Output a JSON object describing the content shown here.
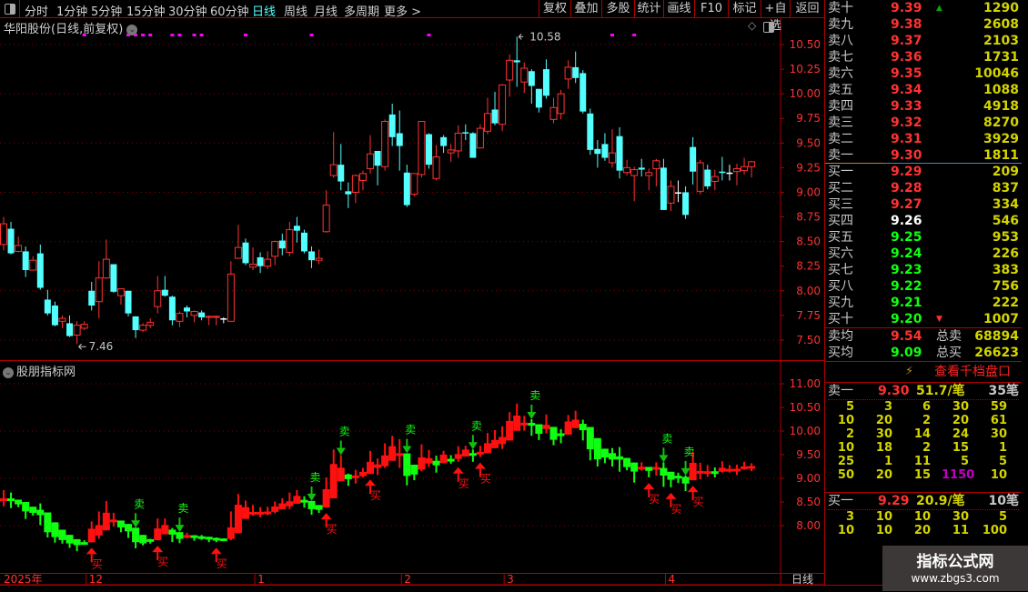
{
  "toolbar": {
    "periods": [
      "分时",
      "1分钟",
      "5分钟",
      "15分钟",
      "30分钟",
      "60分钟",
      "日线",
      "周线",
      "月线",
      "多周期",
      "更多 >"
    ],
    "active_period": "日线",
    "buttons": [
      "复权",
      "叠加",
      "多股",
      "统计",
      "画线",
      "F10",
      "标记",
      "+自选",
      "返回"
    ]
  },
  "chart": {
    "title": "华阳股份(日线,前复权)",
    "indicator_title": "股朋指标网",
    "period_label": "日线",
    "high_label": "10.58",
    "low_label": "7.46",
    "date_labels": [
      {
        "text": "2025年",
        "idx": 0
      },
      {
        "text": "12",
        "idx": 12
      },
      {
        "text": "1",
        "idx": 35
      },
      {
        "text": "2",
        "idx": 55
      },
      {
        "text": "3",
        "idx": 69
      },
      {
        "text": "4",
        "idx": 91
      }
    ]
  },
  "chart_data": [
    {
      "type": "candlestick",
      "title": "华阳股份(日线,前复权)",
      "ylim": [
        7.4,
        10.7
      ],
      "y_ticks": [
        "10.50",
        "10.25",
        "10.00",
        "9.75",
        "9.50",
        "9.25",
        "9.00",
        "8.75",
        "8.50",
        "8.25",
        "8.00",
        "7.75",
        "7.50"
      ],
      "grid": "dotted every 0.50",
      "up_color": "#ff3232",
      "down_color": "#54ffff",
      "flat_color": "#ffffff",
      "event_marker_idx": [
        11,
        17,
        18,
        19,
        20,
        23,
        24,
        26,
        27,
        33,
        42,
        58,
        83,
        86
      ],
      "ohlc": [
        [
          8.47,
          8.75,
          8.41,
          8.68
        ],
        [
          8.63,
          8.7,
          8.37,
          8.38
        ],
        [
          8.4,
          8.55,
          8.39,
          8.46
        ],
        [
          8.4,
          8.45,
          8.14,
          8.21
        ],
        [
          8.21,
          8.35,
          8.21,
          8.31
        ],
        [
          8.38,
          8.47,
          8.01,
          8.03
        ],
        [
          7.91,
          8.01,
          7.75,
          7.77
        ],
        [
          7.85,
          7.89,
          7.64,
          7.65
        ],
        [
          7.69,
          7.75,
          7.62,
          7.72
        ],
        [
          7.67,
          7.75,
          7.53,
          7.54
        ],
        [
          7.55,
          7.69,
          7.46,
          7.65
        ],
        [
          7.62,
          7.69,
          7.6,
          7.66
        ],
        [
          8.0,
          8.09,
          7.8,
          7.85
        ],
        [
          7.89,
          8.3,
          7.72,
          8.13
        ],
        [
          8.13,
          8.52,
          8.12,
          8.32
        ],
        [
          8.27,
          8.27,
          7.98,
          7.99
        ],
        [
          7.95,
          8.02,
          7.86,
          8.02
        ],
        [
          8.0,
          8.0,
          7.74,
          7.77
        ],
        [
          7.74,
          7.74,
          7.52,
          7.6
        ],
        [
          7.6,
          7.67,
          7.58,
          7.65
        ],
        [
          7.65,
          7.72,
          7.62,
          7.68
        ],
        [
          7.84,
          8.15,
          7.77,
          8.0
        ],
        [
          8.01,
          8.15,
          7.94,
          7.95
        ],
        [
          7.94,
          7.95,
          7.65,
          7.7
        ],
        [
          7.69,
          7.79,
          7.63,
          7.77
        ],
        [
          7.83,
          7.85,
          7.73,
          7.79
        ],
        [
          7.75,
          7.8,
          7.68,
          7.79
        ],
        [
          7.78,
          7.8,
          7.7,
          7.73
        ],
        [
          7.73,
          7.75,
          7.65,
          7.74
        ],
        [
          7.73,
          7.75,
          7.65,
          7.74
        ],
        [
          7.72,
          7.73,
          7.67,
          7.72
        ],
        [
          7.69,
          8.3,
          7.69,
          8.17
        ],
        [
          8.33,
          8.67,
          8.33,
          8.44
        ],
        [
          8.49,
          8.53,
          8.26,
          8.28
        ],
        [
          8.24,
          8.44,
          8.21,
          8.27
        ],
        [
          8.34,
          8.39,
          8.18,
          8.25
        ],
        [
          8.25,
          8.4,
          8.22,
          8.32
        ],
        [
          8.35,
          8.51,
          8.26,
          8.5
        ],
        [
          8.51,
          8.58,
          8.36,
          8.43
        ],
        [
          8.39,
          8.7,
          8.35,
          8.62
        ],
        [
          8.66,
          8.75,
          8.49,
          8.61
        ],
        [
          8.59,
          8.62,
          8.38,
          8.4
        ],
        [
          8.4,
          8.45,
          8.23,
          8.31
        ],
        [
          8.31,
          8.42,
          8.27,
          8.33
        ],
        [
          8.6,
          9.02,
          8.59,
          8.87
        ],
        [
          9.17,
          9.61,
          9.15,
          9.28
        ],
        [
          9.28,
          9.49,
          9.02,
          9.11
        ],
        [
          9.01,
          9.1,
          8.84,
          8.98
        ],
        [
          9.0,
          9.18,
          8.89,
          9.17
        ],
        [
          9.12,
          9.22,
          9.02,
          9.19
        ],
        [
          9.24,
          9.58,
          9.19,
          9.39
        ],
        [
          9.42,
          9.42,
          9.07,
          9.27
        ],
        [
          9.26,
          9.74,
          9.22,
          9.72
        ],
        [
          9.79,
          9.9,
          9.47,
          9.56
        ],
        [
          9.6,
          9.83,
          9.22,
          9.47
        ],
        [
          9.2,
          9.28,
          8.85,
          8.87
        ],
        [
          8.98,
          9.19,
          8.96,
          9.19
        ],
        [
          9.18,
          9.72,
          9.15,
          9.72
        ],
        [
          9.59,
          9.6,
          9.24,
          9.28
        ],
        [
          9.14,
          9.48,
          9.12,
          9.36
        ],
        [
          9.56,
          9.58,
          9.4,
          9.47
        ],
        [
          9.4,
          9.49,
          9.31,
          9.43
        ],
        [
          9.42,
          9.68,
          9.35,
          9.6
        ],
        [
          9.61,
          9.69,
          9.53,
          9.6
        ],
        [
          9.6,
          9.61,
          9.35,
          9.35
        ],
        [
          9.45,
          9.69,
          9.45,
          9.65
        ],
        [
          9.62,
          9.96,
          9.59,
          9.8
        ],
        [
          9.84,
          10.02,
          9.68,
          9.7
        ],
        [
          9.69,
          10.1,
          9.62,
          10.09
        ],
        [
          10.14,
          10.4,
          9.97,
          10.34
        ],
        [
          10.34,
          10.58,
          10.07,
          10.32
        ],
        [
          10.12,
          10.32,
          10.01,
          10.26
        ],
        [
          10.23,
          10.25,
          9.9,
          10.08
        ],
        [
          10.05,
          10.05,
          9.81,
          9.86
        ],
        [
          10.25,
          10.35,
          9.95,
          9.98
        ],
        [
          9.74,
          9.96,
          9.7,
          9.86
        ],
        [
          9.8,
          10.04,
          9.74,
          10.0
        ],
        [
          10.15,
          10.34,
          10.05,
          10.27
        ],
        [
          10.27,
          10.43,
          10.11,
          10.16
        ],
        [
          10.21,
          10.24,
          9.8,
          9.82
        ],
        [
          9.8,
          9.85,
          9.38,
          9.43
        ],
        [
          9.44,
          9.53,
          9.25,
          9.39
        ],
        [
          9.49,
          9.6,
          9.32,
          9.35
        ],
        [
          9.3,
          9.64,
          9.25,
          9.4
        ],
        [
          9.57,
          9.66,
          9.14,
          9.22
        ],
        [
          9.2,
          9.33,
          9.17,
          9.25
        ],
        [
          9.17,
          9.26,
          8.91,
          9.23
        ],
        [
          9.25,
          9.34,
          9.16,
          9.23
        ],
        [
          9.17,
          9.24,
          9.02,
          9.2
        ],
        [
          9.24,
          9.34,
          9.06,
          9.32
        ],
        [
          9.25,
          9.34,
          8.82,
          8.82
        ],
        [
          8.89,
          9.12,
          8.81,
          9.06
        ],
        [
          9.0,
          9.12,
          8.9,
          9.0
        ],
        [
          9.0,
          9.06,
          8.73,
          8.77
        ],
        [
          9.46,
          9.56,
          9.08,
          9.21
        ],
        [
          9.01,
          9.33,
          8.98,
          9.3
        ],
        [
          9.23,
          9.28,
          9.03,
          9.06
        ],
        [
          9.11,
          9.23,
          9.02,
          9.16
        ],
        [
          9.21,
          9.36,
          9.12,
          9.2
        ],
        [
          9.2,
          9.28,
          9.12,
          9.2
        ],
        [
          9.21,
          9.29,
          9.07,
          9.24
        ],
        [
          9.22,
          9.35,
          9.18,
          9.26
        ],
        [
          9.26,
          9.32,
          9.15,
          9.31
        ]
      ]
    },
    {
      "type": "candlestick",
      "title": "股朋指标网",
      "ylim": [
        7.2,
        11.3
      ],
      "y_ticks": [
        "11.00",
        "10.50",
        "10.00",
        "9.50",
        "9.00",
        "8.50",
        "8.00"
      ],
      "grid": "dotted every 1.00",
      "up_color": "#ff1010",
      "down_color": "#10ff10",
      "sell_label": "卖",
      "buy_label": "买",
      "sell_signal_idx": [
        18,
        24,
        42,
        46,
        55,
        64,
        72,
        90,
        93
      ],
      "buy_signal_idx": [
        12,
        21,
        29,
        44,
        50,
        62,
        65,
        88,
        91,
        94
      ]
    }
  ],
  "order_book": {
    "asks": [
      {
        "label": "卖十",
        "price": "9.39",
        "vol": "1290",
        "mark": "up"
      },
      {
        "label": "卖九",
        "price": "9.38",
        "vol": "2608"
      },
      {
        "label": "卖八",
        "price": "9.37",
        "vol": "2103"
      },
      {
        "label": "卖七",
        "price": "9.36",
        "vol": "1731"
      },
      {
        "label": "卖六",
        "price": "9.35",
        "vol": "10046"
      },
      {
        "label": "卖五",
        "price": "9.34",
        "vol": "1088"
      },
      {
        "label": "卖四",
        "price": "9.33",
        "vol": "4918"
      },
      {
        "label": "卖三",
        "price": "9.32",
        "vol": "8270"
      },
      {
        "label": "卖二",
        "price": "9.31",
        "vol": "3929"
      },
      {
        "label": "卖一",
        "price": "9.30",
        "vol": "1811"
      }
    ],
    "bids": [
      {
        "label": "买一",
        "price": "9.29",
        "vol": "209",
        "color": "#ff3232"
      },
      {
        "label": "买二",
        "price": "9.28",
        "vol": "837",
        "color": "#ff3232"
      },
      {
        "label": "买三",
        "price": "9.27",
        "vol": "334",
        "color": "#ff3232"
      },
      {
        "label": "买四",
        "price": "9.26",
        "vol": "546",
        "color": "#ffffff"
      },
      {
        "label": "买五",
        "price": "9.25",
        "vol": "953",
        "color": "#10ff10"
      },
      {
        "label": "买六",
        "price": "9.24",
        "vol": "226",
        "color": "#10ff10"
      },
      {
        "label": "买七",
        "price": "9.23",
        "vol": "383",
        "color": "#10ff10"
      },
      {
        "label": "买八",
        "price": "9.22",
        "vol": "756",
        "color": "#10ff10"
      },
      {
        "label": "买九",
        "price": "9.21",
        "vol": "222",
        "color": "#10ff10"
      },
      {
        "label": "买十",
        "price": "9.20",
        "vol": "1007",
        "color": "#10ff10",
        "mark": "down"
      }
    ],
    "avg_sell": {
      "label": "卖均",
      "price": "9.54",
      "total_label": "总卖",
      "total": "68894"
    },
    "avg_buy": {
      "label": "买均",
      "price": "9.09",
      "total_label": "总买",
      "total": "26623"
    },
    "level_link": "查看千档盘口",
    "sell1_queue": {
      "label": "卖一",
      "price": "9.30",
      "avg": "51.7/笔",
      "count": "35笔",
      "rows": [
        [
          "5",
          "3",
          "6",
          "30",
          "59"
        ],
        [
          "10",
          "20",
          "2",
          "20",
          "61"
        ],
        [
          "2",
          "30",
          "14",
          "24",
          "30"
        ],
        [
          "10",
          "18",
          "2",
          "15",
          "1"
        ],
        [
          "25",
          "1",
          "11",
          "5",
          "5"
        ],
        [
          "50",
          "20",
          "15",
          "1150",
          "10"
        ]
      ],
      "highlight": "1150"
    },
    "buy1_queue": {
      "label": "买一",
      "price": "9.29",
      "avg": "20.9/笔",
      "count": "10笔",
      "rows": [
        [
          "3",
          "10",
          "10",
          "30",
          "5"
        ],
        [
          "10",
          "10",
          "20",
          "11",
          "100"
        ]
      ]
    }
  },
  "watermark": {
    "line1": "指标公式网",
    "line2": "www.zbgs3.com"
  }
}
